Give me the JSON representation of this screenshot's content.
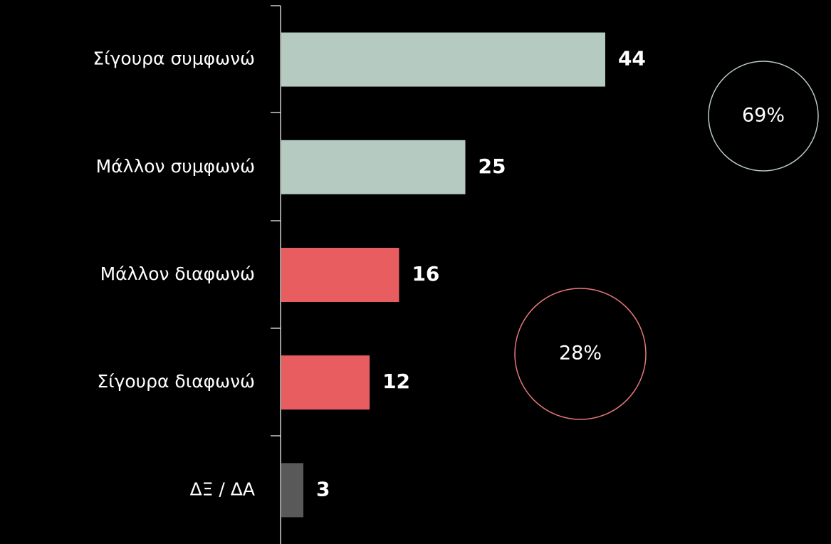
{
  "chart_data": {
    "type": "hbar",
    "categories": [
      "Σίγουρα συμφωνώ",
      "Μάλλον συμφωνώ",
      "Μάλλον διαφωνώ",
      "Σίγουρα διαφωνώ",
      "ΔΞ / ΔΑ"
    ],
    "values": [
      44,
      25,
      16,
      12,
      3
    ],
    "colors": [
      "#b5cac0",
      "#b5cac0",
      "#e85d60",
      "#e85d60",
      "#595959"
    ],
    "annotations": [
      {
        "text": "69%",
        "color": "#b5cac0"
      },
      {
        "text": "28%",
        "color": "#e8787b"
      }
    ]
  }
}
